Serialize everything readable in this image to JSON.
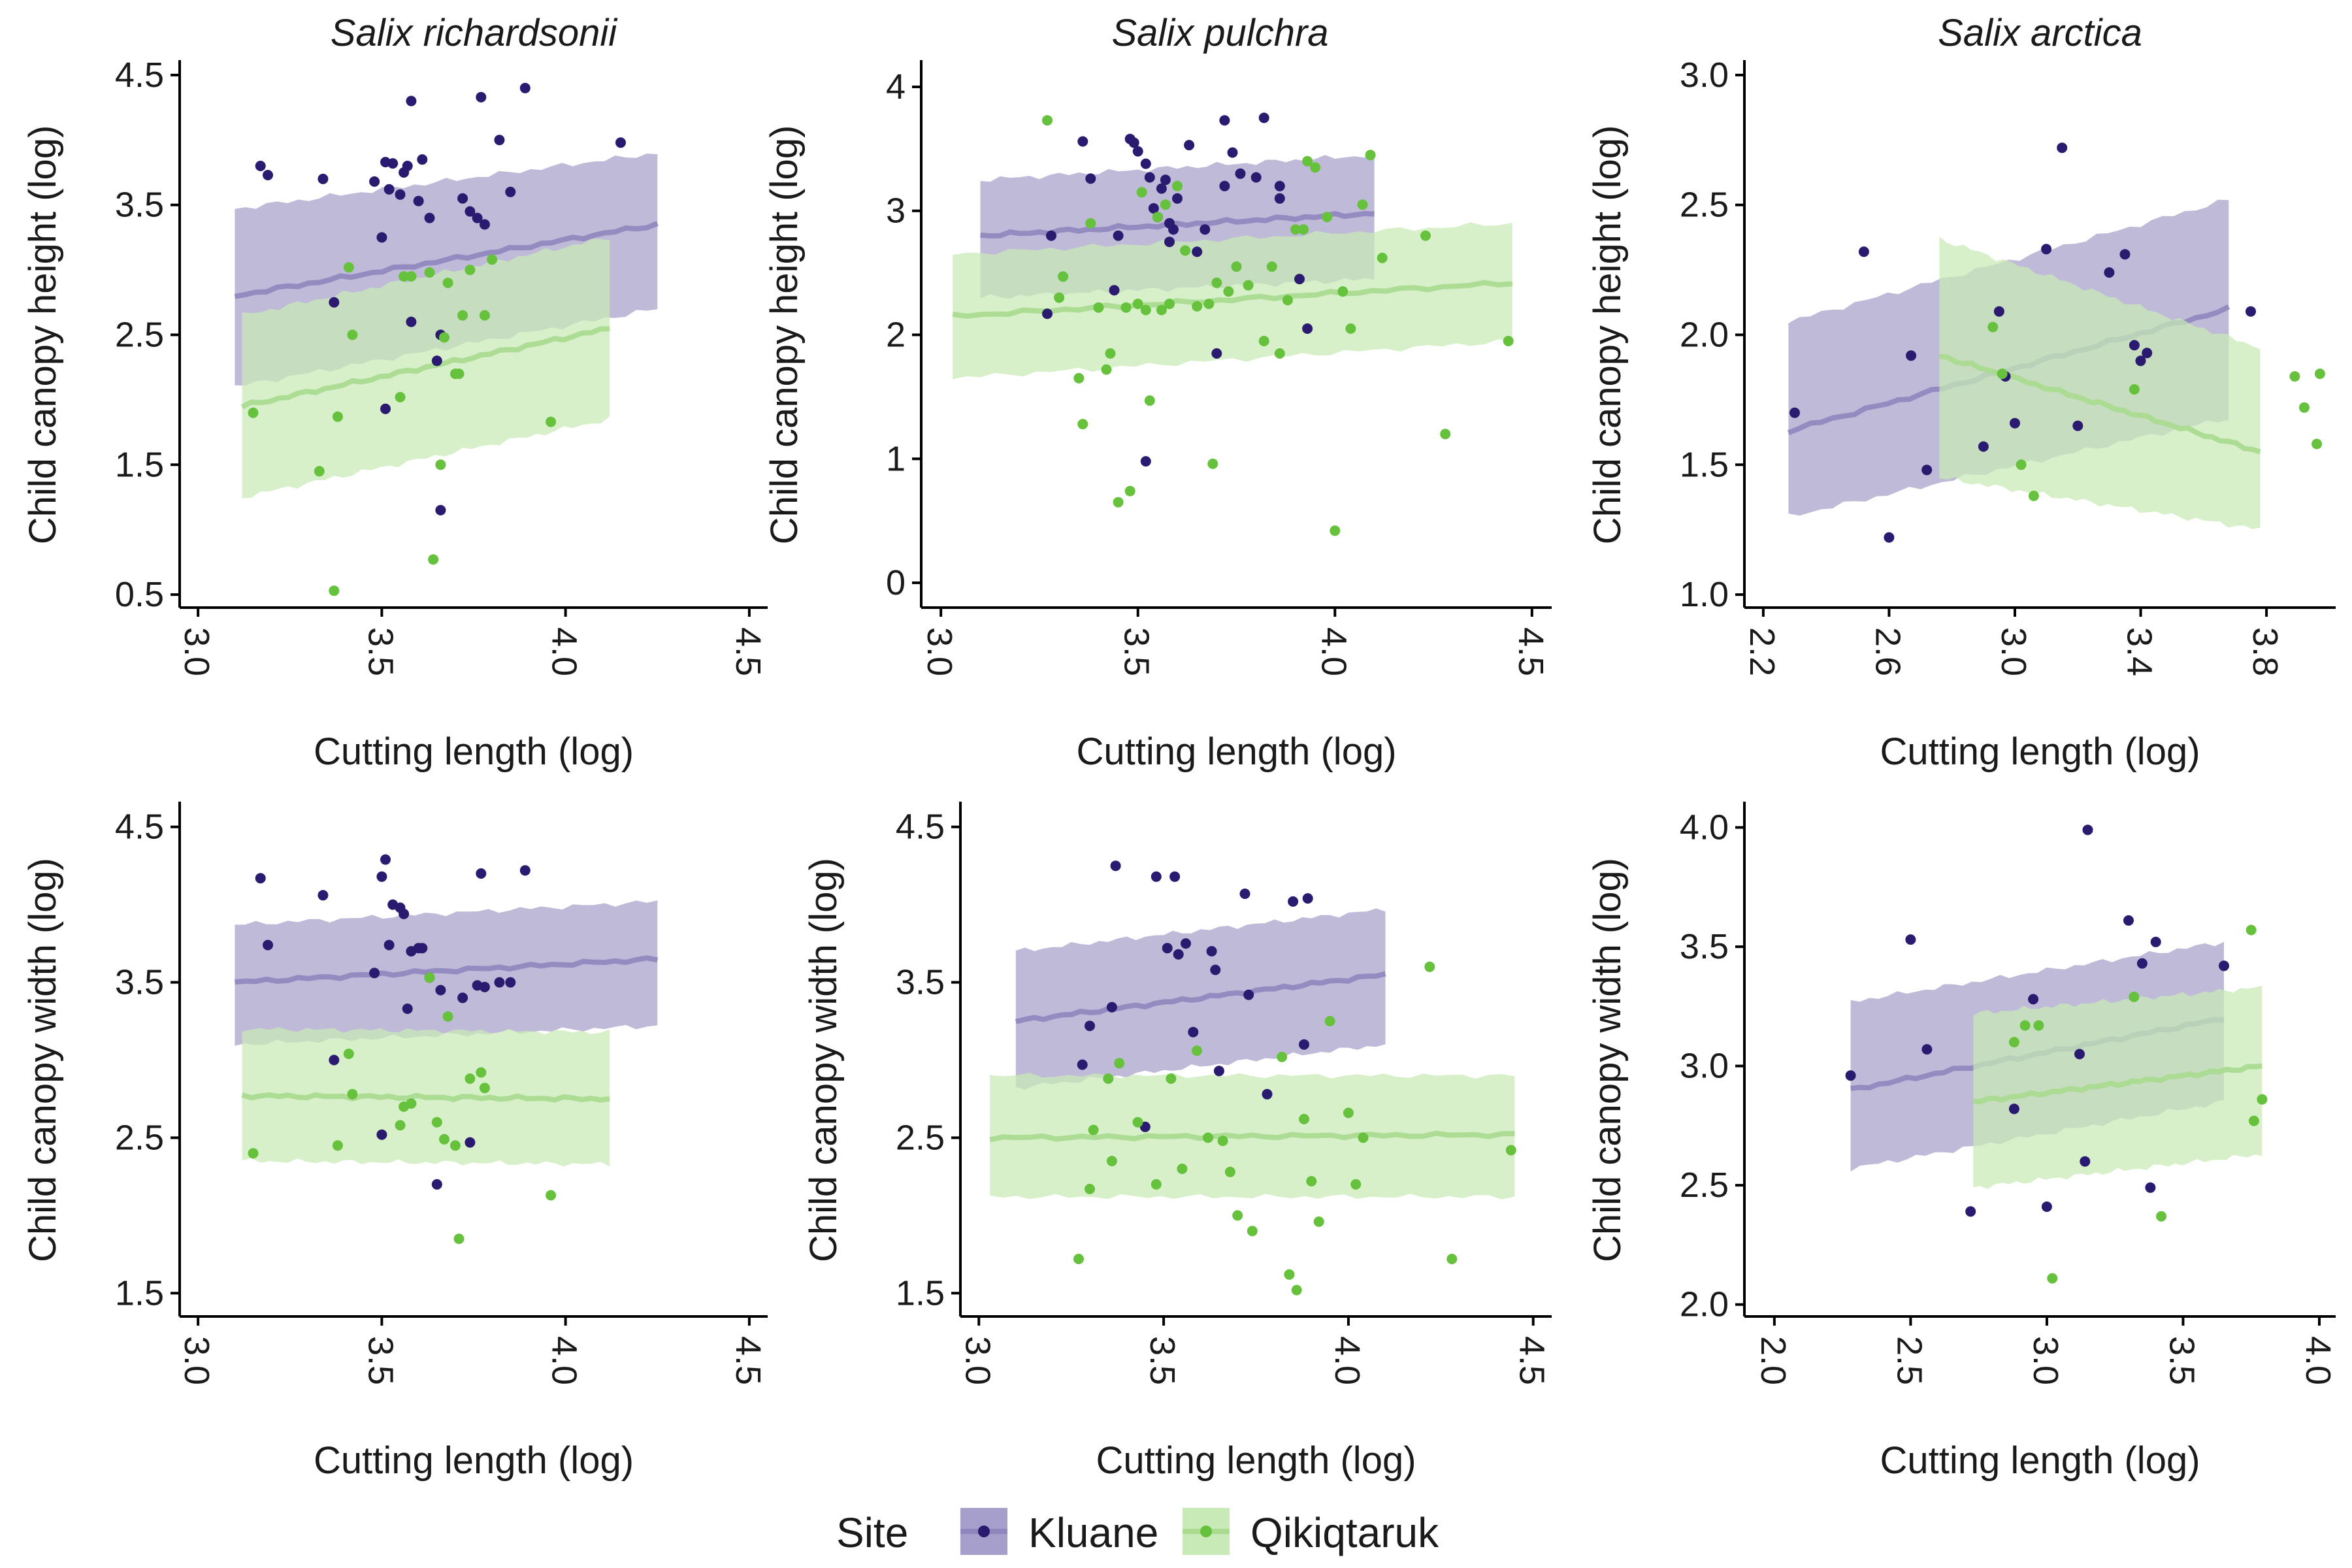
{
  "colors": {
    "kluane": "#2a1a70",
    "kluane_band": "#a79fcb",
    "kluane_line": "#8f86be",
    "qiki": "#66c23c",
    "qiki_band": "#c8eab6",
    "qiki_line": "#a9da8e"
  },
  "legend": {
    "title": "Site",
    "items": [
      {
        "label": "Kluane"
      },
      {
        "label": "Qikiqtaruk"
      }
    ]
  },
  "chart_data": [
    {
      "type": "scatter",
      "title": "Salix richardsonii",
      "xlabel": "Cutting length (log)",
      "ylabel": "Child canopy height (log)",
      "xlim": [
        2.95,
        4.55
      ],
      "ylim": [
        0.4,
        4.6
      ],
      "xticks": [
        "3.0",
        "3.5",
        "4.0",
        "4.5"
      ],
      "yticks": [
        "0.5",
        "1.5",
        "2.5",
        "3.5",
        "4.5"
      ],
      "bands": [
        {
          "site": "Kluane",
          "x": [
            3.1,
            4.25
          ],
          "lo": [
            2.1,
            2.7
          ],
          "hi": [
            3.47,
            3.9
          ],
          "fit": [
            2.8,
            3.35
          ]
        },
        {
          "site": "Qikiqtaruk",
          "x": [
            3.12,
            4.12
          ],
          "lo": [
            1.25,
            1.85
          ],
          "hi": [
            2.65,
            3.25
          ],
          "fit": [
            1.95,
            2.55
          ]
        }
      ],
      "points": [
        {
          "site": "Kluane",
          "x": [
            3.17,
            3.19,
            3.34,
            3.37,
            3.48,
            3.5,
            3.51,
            3.52,
            3.53,
            3.55,
            3.56,
            3.57,
            3.58,
            3.6,
            3.61,
            3.63,
            3.65,
            3.66,
            3.72,
            3.74,
            3.76,
            3.77,
            3.78,
            3.82,
            3.85,
            3.89,
            4.15,
            3.51,
            3.66,
            3.58
          ],
          "y": [
            3.8,
            3.73,
            3.7,
            2.75,
            3.68,
            3.25,
            3.83,
            3.62,
            3.82,
            3.58,
            3.75,
            3.8,
            4.3,
            3.53,
            3.85,
            3.4,
            2.3,
            1.15,
            3.55,
            3.45,
            3.4,
            4.33,
            3.35,
            4.0,
            3.6,
            4.4,
            3.98,
            1.93,
            2.5,
            2.6
          ]
        },
        {
          "site": "Qikiqtaruk",
          "x": [
            3.15,
            3.33,
            3.37,
            3.38,
            3.41,
            3.42,
            3.55,
            3.56,
            3.58,
            3.63,
            3.64,
            3.66,
            3.67,
            3.68,
            3.7,
            3.71,
            3.72,
            3.74,
            3.78,
            3.8,
            3.96
          ],
          "y": [
            1.9,
            1.45,
            0.53,
            1.87,
            3.02,
            2.5,
            2.02,
            2.95,
            2.95,
            2.98,
            0.77,
            1.5,
            2.48,
            2.9,
            2.2,
            2.2,
            2.65,
            3.0,
            2.65,
            3.08,
            1.83
          ]
        }
      ]
    },
    {
      "type": "scatter",
      "title": "Salix pulchra",
      "xlabel": "Cutting length (log)",
      "ylabel": "Child canopy height (log)",
      "xlim": [
        2.95,
        4.55
      ],
      "ylim": [
        -0.2,
        4.2
      ],
      "xticks": [
        "3.0",
        "3.5",
        "4.0",
        "4.5"
      ],
      "yticks": [
        "0",
        "1",
        "2",
        "3",
        "4"
      ],
      "bands": [
        {
          "site": "Kluane",
          "x": [
            3.1,
            4.1
          ],
          "lo": [
            2.3,
            2.45
          ],
          "hi": [
            3.25,
            3.45
          ],
          "fit": [
            2.8,
            2.98
          ]
        },
        {
          "site": "Qikiqtaruk",
          "x": [
            3.03,
            4.45
          ],
          "lo": [
            1.65,
            1.95
          ],
          "hi": [
            2.65,
            2.9
          ],
          "fit": [
            2.15,
            2.42
          ]
        }
      ],
      "points": [
        {
          "site": "Kluane",
          "x": [
            3.27,
            3.28,
            3.36,
            3.38,
            3.44,
            3.45,
            3.48,
            3.49,
            3.5,
            3.52,
            3.53,
            3.54,
            3.55,
            3.56,
            3.57,
            3.58,
            3.59,
            3.6,
            3.63,
            3.65,
            3.67,
            3.7,
            3.72,
            3.72,
            3.74,
            3.76,
            3.8,
            3.82,
            3.86,
            3.86,
            3.91,
            3.93,
            3.52,
            3.58
          ],
          "y": [
            2.17,
            2.8,
            3.56,
            3.26,
            2.36,
            2.8,
            3.58,
            3.55,
            3.48,
            3.38,
            3.27,
            3.02,
            2.95,
            3.18,
            3.25,
            2.9,
            2.85,
            3.1,
            3.53,
            2.67,
            2.85,
            1.85,
            3.73,
            3.2,
            3.47,
            3.3,
            3.27,
            3.75,
            3.2,
            3.1,
            2.45,
            2.05,
            0.98,
            2.75
          ]
        },
        {
          "site": "Qikiqtaruk",
          "x": [
            3.27,
            3.3,
            3.31,
            3.35,
            3.36,
            3.38,
            3.4,
            3.42,
            3.43,
            3.45,
            3.47,
            3.48,
            3.5,
            3.51,
            3.52,
            3.53,
            3.55,
            3.56,
            3.57,
            3.58,
            3.6,
            3.62,
            3.65,
            3.68,
            3.69,
            3.7,
            3.73,
            3.75,
            3.78,
            3.82,
            3.84,
            3.86,
            3.88,
            3.9,
            3.92,
            3.93,
            3.95,
            3.98,
            4.0,
            4.02,
            4.04,
            4.07,
            4.09,
            4.12,
            4.23,
            4.28,
            4.44
          ],
          "y": [
            3.73,
            2.3,
            2.47,
            1.65,
            1.28,
            2.9,
            2.22,
            1.72,
            1.85,
            0.65,
            2.22,
            0.74,
            2.25,
            3.15,
            2.2,
            1.47,
            2.95,
            2.2,
            3.05,
            2.25,
            3.2,
            2.68,
            2.23,
            2.25,
            0.96,
            2.42,
            2.35,
            2.55,
            2.4,
            1.95,
            2.55,
            1.85,
            2.28,
            2.85,
            2.85,
            3.4,
            3.35,
            2.95,
            0.42,
            2.35,
            2.05,
            3.05,
            3.45,
            2.62,
            2.8,
            1.2,
            1.95
          ]
        }
      ]
    },
    {
      "type": "scatter",
      "title": "Salix arctica",
      "xlabel": "Cutting length (log)",
      "ylabel": "Child canopy height (log)",
      "xlim": [
        2.14,
        4.02
      ],
      "ylim": [
        0.95,
        3.05
      ],
      "xticks": [
        "2.2",
        "2.6",
        "3.0",
        "3.4",
        "3.8"
      ],
      "yticks": [
        "1.0",
        "1.5",
        "2.0",
        "2.5",
        "3.0"
      ],
      "bands": [
        {
          "site": "Kluane",
          "x": [
            2.28,
            3.68
          ],
          "lo": [
            1.3,
            1.68
          ],
          "hi": [
            2.05,
            2.52
          ],
          "fit": [
            1.63,
            2.1
          ]
        },
        {
          "site": "Qikiqtaruk",
          "x": [
            2.76,
            3.78
          ],
          "lo": [
            1.45,
            1.25
          ],
          "hi": [
            2.37,
            1.95
          ],
          "fit": [
            1.92,
            1.55
          ]
        }
      ],
      "points": [
        {
          "site": "Kluane",
          "x": [
            2.3,
            2.52,
            2.6,
            2.67,
            2.72,
            2.9,
            2.95,
            2.97,
            3.0,
            3.1,
            3.15,
            3.2,
            3.3,
            3.35,
            3.38,
            3.4,
            3.42,
            3.75
          ],
          "y": [
            1.7,
            2.32,
            1.22,
            1.92,
            1.48,
            1.57,
            2.09,
            1.84,
            1.66,
            2.33,
            2.72,
            1.65,
            2.24,
            2.31,
            1.96,
            1.9,
            1.93,
            2.09
          ]
        },
        {
          "site": "Qikiqtaruk",
          "x": [
            2.93,
            2.96,
            3.02,
            3.06,
            3.38,
            3.89,
            3.92,
            3.96,
            3.97
          ],
          "y": [
            2.03,
            1.85,
            1.5,
            1.38,
            1.79,
            1.84,
            1.72,
            1.58,
            1.85
          ]
        }
      ]
    },
    {
      "type": "scatter",
      "xlabel": "Cutting length (log)",
      "ylabel": "Child canopy width (log)",
      "xlim": [
        2.95,
        4.55
      ],
      "ylim": [
        1.35,
        4.65
      ],
      "xticks": [
        "3.0",
        "3.5",
        "4.0",
        "4.5"
      ],
      "yticks": [
        "1.5",
        "2.5",
        "3.5",
        "4.5"
      ],
      "bands": [
        {
          "site": "Kluane",
          "x": [
            3.1,
            4.25
          ],
          "lo": [
            3.1,
            3.22
          ],
          "hi": [
            3.87,
            4.02
          ],
          "fit": [
            3.5,
            3.65
          ]
        },
        {
          "site": "Qikiqtaruk",
          "x": [
            3.12,
            4.12
          ],
          "lo": [
            2.35,
            2.33
          ],
          "hi": [
            3.2,
            3.18
          ],
          "fit": [
            2.77,
            2.75
          ]
        }
      ],
      "points": [
        {
          "site": "Kluane",
          "x": [
            3.17,
            3.19,
            3.34,
            3.37,
            3.48,
            3.5,
            3.51,
            3.52,
            3.53,
            3.55,
            3.56,
            3.57,
            3.58,
            3.6,
            3.61,
            3.63,
            3.65,
            3.66,
            3.72,
            3.74,
            3.76,
            3.77,
            3.78,
            3.82,
            3.85,
            3.89,
            3.5
          ],
          "y": [
            4.17,
            3.74,
            4.06,
            3.0,
            3.56,
            4.18,
            4.29,
            3.74,
            4.0,
            3.98,
            3.94,
            3.33,
            3.7,
            3.72,
            3.72,
            3.53,
            2.2,
            3.45,
            3.4,
            2.47,
            3.48,
            4.2,
            3.47,
            3.5,
            3.5,
            4.22,
            2.52
          ]
        },
        {
          "site": "Qikiqtaruk",
          "x": [
            3.15,
            3.38,
            3.41,
            3.42,
            3.55,
            3.56,
            3.58,
            3.63,
            3.65,
            3.67,
            3.68,
            3.7,
            3.71,
            3.74,
            3.77,
            3.78,
            3.96
          ],
          "y": [
            2.4,
            2.45,
            3.04,
            2.78,
            2.58,
            2.7,
            2.72,
            3.53,
            2.6,
            2.49,
            3.28,
            2.45,
            1.85,
            2.88,
            2.92,
            2.82,
            2.13
          ]
        }
      ]
    },
    {
      "type": "scatter",
      "xlabel": "Cutting length (log)",
      "ylabel": "Child canopy width (log)",
      "xlim": [
        2.95,
        4.55
      ],
      "ylim": [
        1.35,
        4.65
      ],
      "xticks": [
        "3.0",
        "3.5",
        "4.0",
        "4.5"
      ],
      "yticks": [
        "1.5",
        "2.5",
        "3.5",
        "4.5"
      ],
      "bands": [
        {
          "site": "Kluane",
          "x": [
            3.1,
            4.1
          ],
          "lo": [
            2.82,
            3.1
          ],
          "hi": [
            3.7,
            3.97
          ],
          "fit": [
            3.25,
            3.55
          ]
        },
        {
          "site": "Qikiqtaruk",
          "x": [
            3.03,
            4.45
          ],
          "lo": [
            2.12,
            2.12
          ],
          "hi": [
            2.9,
            2.9
          ],
          "fit": [
            2.5,
            2.52
          ]
        }
      ],
      "points": [
        {
          "site": "Kluane",
          "x": [
            3.28,
            3.3,
            3.36,
            3.37,
            3.45,
            3.48,
            3.51,
            3.53,
            3.54,
            3.56,
            3.58,
            3.63,
            3.64,
            3.65,
            3.72,
            3.73,
            3.78,
            3.85,
            3.88,
            3.89
          ],
          "y": [
            2.97,
            3.22,
            3.34,
            4.25,
            2.57,
            4.18,
            3.72,
            4.18,
            3.68,
            3.75,
            3.18,
            3.7,
            3.58,
            2.93,
            4.07,
            3.42,
            2.78,
            4.02,
            3.1,
            4.04
          ]
        },
        {
          "site": "Qikiqtaruk",
          "x": [
            3.27,
            3.3,
            3.31,
            3.35,
            3.36,
            3.38,
            3.43,
            3.48,
            3.52,
            3.55,
            3.59,
            3.62,
            3.66,
            3.68,
            3.7,
            3.74,
            3.82,
            3.84,
            3.86,
            3.88,
            3.9,
            3.92,
            3.95,
            4.0,
            4.02,
            4.04,
            4.22,
            4.28,
            4.44
          ],
          "y": [
            1.72,
            2.17,
            2.55,
            2.88,
            2.35,
            2.98,
            2.6,
            2.2,
            2.88,
            2.3,
            3.06,
            2.5,
            2.48,
            2.28,
            2.0,
            1.9,
            3.02,
            1.62,
            1.52,
            2.62,
            2.22,
            1.96,
            3.25,
            2.66,
            2.2,
            2.5,
            3.6,
            1.72,
            2.42
          ]
        }
      ]
    },
    {
      "type": "scatter",
      "xlabel": "Cutting length (log)",
      "ylabel": "Child canopy width (log)",
      "xlim": [
        1.89,
        4.06
      ],
      "ylim": [
        1.95,
        4.1
      ],
      "xticks": [
        "2.0",
        "2.5",
        "3.0",
        "3.5",
        "4.0"
      ],
      "yticks": [
        "2.0",
        "2.5",
        "3.0",
        "3.5",
        "4.0"
      ],
      "bands": [
        {
          "site": "Kluane",
          "x": [
            2.28,
            3.65
          ],
          "lo": [
            2.57,
            2.85
          ],
          "hi": [
            3.27,
            3.52
          ],
          "fit": [
            2.9,
            3.2
          ]
        },
        {
          "site": "Qikiqtaruk",
          "x": [
            2.73,
            3.79
          ],
          "lo": [
            2.49,
            2.63
          ],
          "hi": [
            3.22,
            3.33
          ],
          "fit": [
            2.85,
            3.0
          ]
        }
      ],
      "points": [
        {
          "site": "Kluane",
          "x": [
            2.28,
            2.5,
            2.56,
            2.72,
            2.88,
            2.95,
            3.0,
            3.12,
            3.14,
            3.15,
            3.3,
            3.35,
            3.38,
            3.4,
            3.65
          ],
          "y": [
            2.96,
            3.53,
            3.07,
            2.39,
            2.82,
            3.28,
            2.41,
            3.05,
            2.6,
            3.99,
            3.61,
            3.43,
            2.49,
            3.52,
            3.42
          ]
        },
        {
          "site": "Qikiqtaruk",
          "x": [
            2.88,
            2.92,
            2.97,
            3.02,
            3.32,
            3.42,
            3.75,
            3.76,
            3.79
          ],
          "y": [
            3.1,
            3.17,
            3.17,
            2.11,
            3.29,
            2.37,
            3.57,
            2.77,
            2.86
          ]
        }
      ]
    }
  ]
}
